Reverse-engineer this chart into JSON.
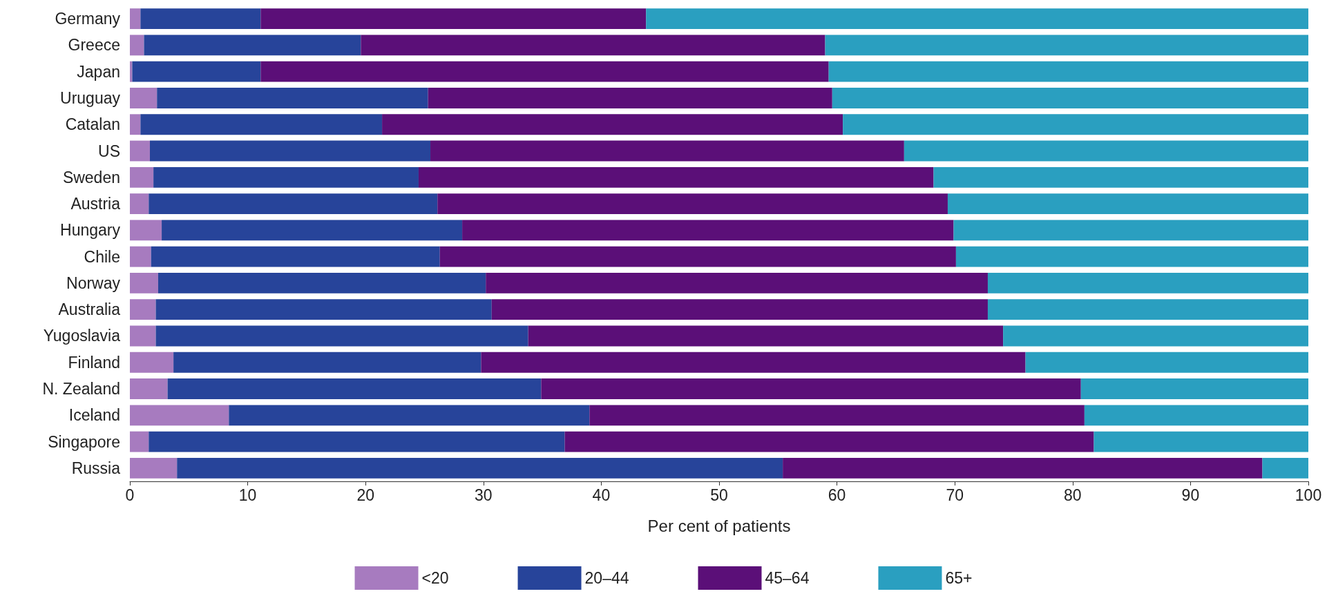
{
  "chart_data": {
    "type": "bar",
    "orientation": "horizontal",
    "stacked": true,
    "xlabel": "Per cent of patients",
    "categories": [
      "Germany",
      "Greece",
      "Japan",
      "Uruguay",
      "Catalan",
      "US",
      "Sweden",
      "Austria",
      "Hungary",
      "Chile",
      "Norway",
      "Australia",
      "Yugoslavia",
      "Finland",
      "N. Zealand",
      "Iceland",
      "Singapore",
      "Russia"
    ],
    "series": [
      {
        "name": "<20",
        "color": "#a77bbf",
        "values": [
          0.9,
          1.2,
          0.2,
          2.3,
          0.9,
          1.7,
          2.0,
          1.6,
          2.7,
          1.8,
          2.4,
          2.2,
          2.2,
          3.7,
          3.2,
          8.4,
          1.6,
          4.0
        ]
      },
      {
        "name": "20–44",
        "color": "#27449a",
        "values": [
          10.2,
          18.4,
          10.9,
          23.0,
          20.5,
          23.8,
          22.5,
          24.5,
          25.5,
          24.5,
          27.8,
          28.5,
          31.6,
          26.1,
          31.7,
          30.6,
          35.3,
          51.4
        ]
      },
      {
        "name": "45–64",
        "color": "#5b0f78",
        "values": [
          32.7,
          39.4,
          48.2,
          34.3,
          39.1,
          40.2,
          43.7,
          43.3,
          41.7,
          43.8,
          42.6,
          42.1,
          40.3,
          46.2,
          45.8,
          42.0,
          44.9,
          40.7
        ]
      },
      {
        "name": "65+",
        "color": "#2a9fc0",
        "values": [
          56.2,
          41.0,
          40.7,
          40.4,
          39.5,
          34.3,
          31.8,
          30.6,
          30.1,
          29.9,
          27.2,
          27.2,
          25.9,
          24.0,
          19.3,
          19.0,
          18.2,
          3.9
        ]
      }
    ],
    "xlim": [
      0,
      100
    ],
    "xticks": [
      0,
      10,
      20,
      30,
      40,
      50,
      60,
      70,
      80,
      90,
      100
    ],
    "grid": false,
    "legend": "bottom"
  }
}
